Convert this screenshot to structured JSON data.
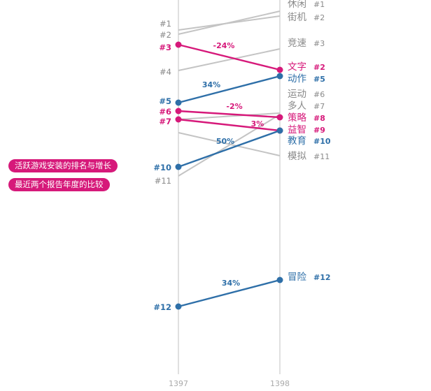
{
  "title_lines": [
    "活跃游戏安装的排名与增长",
    "最近两个报告年度的比较"
  ],
  "colors": {
    "axis": "#cccccc",
    "gray_line": "#c4c4c4",
    "gray_text": "#8a8a8a",
    "pink": "#d6197a",
    "blue": "#2e6fa8",
    "pill_bg": "#d6197a",
    "pill_text": "#ffffff"
  },
  "chart_data": {
    "type": "slope",
    "x": [
      "1397",
      "1398"
    ],
    "y_axis": "rank (1 at top)",
    "series": [
      {
        "name": "休闲",
        "ranks": [
          2,
          1
        ],
        "highlight": "none"
      },
      {
        "name": "街机",
        "ranks": [
          1,
          2
        ],
        "highlight": "none"
      },
      {
        "name": "竞速",
        "ranks": [
          4,
          3
        ],
        "highlight": "none"
      },
      {
        "name": "运动",
        "ranks": [
          7,
          6
        ],
        "highlight": "none"
      },
      {
        "name": "多人",
        "ranks": [
          11,
          7
        ],
        "highlight": "none"
      },
      {
        "name": "模拟",
        "ranks": [
          null,
          11
        ],
        "highlight": "none"
      },
      {
        "name": "文字",
        "ranks": [
          3,
          2
        ],
        "highlight": "pink",
        "growth": "-24%"
      },
      {
        "name": "动作",
        "ranks": [
          5,
          5
        ],
        "highlight": "blue",
        "growth": "34%"
      },
      {
        "name": "策略",
        "ranks": [
          6,
          8
        ],
        "highlight": "pink",
        "growth": "-2%"
      },
      {
        "name": "益智",
        "ranks": [
          7,
          9
        ],
        "highlight": "pink",
        "growth": "3%"
      },
      {
        "name": "教育",
        "ranks": [
          10,
          10
        ],
        "highlight": "blue",
        "growth": "50%"
      },
      {
        "name": "冒险",
        "ranks": [
          12,
          12
        ],
        "highlight": "blue",
        "growth": "34%"
      }
    ],
    "left_rank_labels": [
      "#1",
      "#2",
      "#3",
      "#4",
      "#5",
      "#6",
      "#7",
      "#10",
      "#11",
      "#12"
    ],
    "right_labels": [
      {
        "name": "休闲",
        "rank": "#1"
      },
      {
        "name": "街机",
        "rank": "#2"
      },
      {
        "name": "竞速",
        "rank": "#3"
      },
      {
        "name": "文字",
        "rank": "#2"
      },
      {
        "name": "动作",
        "rank": "#5"
      },
      {
        "name": "运动",
        "rank": "#6"
      },
      {
        "name": "多人",
        "rank": "#7"
      },
      {
        "name": "策略",
        "rank": "#8"
      },
      {
        "name": "益智",
        "rank": "#9"
      },
      {
        "name": "教育",
        "rank": "#10"
      },
      {
        "name": "模拟",
        "rank": "#11"
      },
      {
        "name": "冒险",
        "rank": "#12"
      }
    ],
    "growth_labels": [
      "-24%",
      "34%",
      "-2%",
      "3%",
      "50%",
      "34%"
    ],
    "grid": false
  }
}
